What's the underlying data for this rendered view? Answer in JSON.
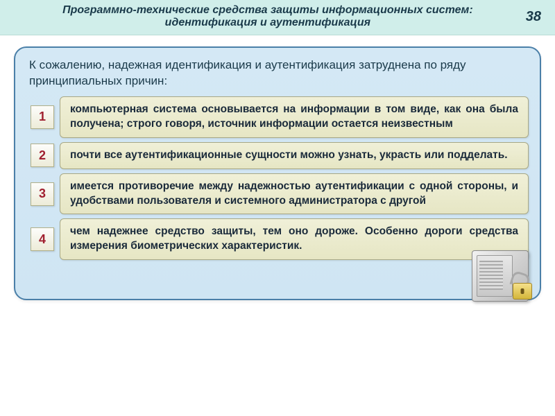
{
  "colors": {
    "header_bg": "#d0eeea",
    "header_text": "#1a3a4a",
    "panel_bg_top": "#d4e8f5",
    "panel_bg_bottom": "#cfe5f3",
    "panel_border": "#4a7fa8",
    "numbox_bg_top": "#fdfdfb",
    "numbox_bg_bottom": "#edecd8",
    "numbox_border": "#b0b089",
    "numbox_text": "#a02030",
    "textbox_bg_top": "#f0f0d8",
    "textbox_bg_bottom": "#e6e6c4",
    "textbox_border": "#a8a885",
    "textbox_text": "#1a2a3a",
    "lock_gold_top": "#f5e08a",
    "lock_gold_bottom": "#d4b63a"
  },
  "typography": {
    "header_fontsize": 16,
    "header_weight": "bold",
    "header_style": "italic",
    "pagenum_fontsize": 20,
    "intro_fontsize": 17,
    "numbox_fontsize": 18,
    "textbox_fontsize": 15.5,
    "font_family": "Arial, sans-serif"
  },
  "header": {
    "line1": "Программно-технические средства защиты информационных систем:",
    "line2": "идентификация и аутентификация",
    "page_number": "38"
  },
  "intro": "К сожалению, надежная идентификация и аутентификация затруднена по ряду принципиальных причин:",
  "items": [
    {
      "n": "1",
      "text": "компьютерная система основывается на информации в том виде, как она была получена; строго говоря, источник информации остается неизвестным"
    },
    {
      "n": "2",
      "text": "почти все аутентификационные сущности можно узнать, украсть или подделать."
    },
    {
      "n": "3",
      "text": "имеется противоречие между надежностью аутентификации с одной стороны, и удобствами пользователя и системного администратора с другой"
    },
    {
      "n": "4",
      "text": "чем надежнее средство защиты, тем оно дороже. Особенно дороги средства измерения биометрических характеристик."
    }
  ]
}
